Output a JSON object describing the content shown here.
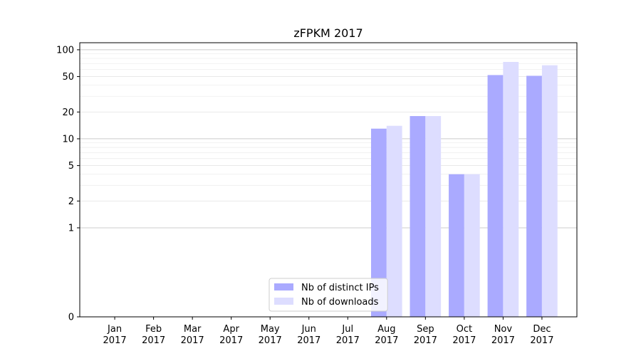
{
  "chart_data": {
    "type": "bar",
    "title": "zFPKM 2017",
    "xlabel": "",
    "ylabel": "",
    "yscale": "symlog",
    "ylim": [
      0,
      120
    ],
    "y_ticks": [
      0,
      1,
      2,
      5,
      10,
      20,
      50,
      100
    ],
    "y_tick_labels": [
      "0",
      "1",
      "2",
      "5",
      "10",
      "20",
      "50",
      "100"
    ],
    "grid": true,
    "legend_position": "lower center",
    "categories": [
      "Jan\n2017",
      "Feb\n2017",
      "Mar\n2017",
      "Apr\n2017",
      "May\n2017",
      "Jun\n2017",
      "Jul\n2017",
      "Aug\n2017",
      "Sep\n2017",
      "Oct\n2017",
      "Nov\n2017",
      "Dec\n2017"
    ],
    "series": [
      {
        "name": "Nb of distinct IPs",
        "color": "#aaaaff",
        "values": [
          0,
          0,
          0,
          0,
          0,
          0,
          0,
          13,
          18,
          4,
          52,
          51
        ]
      },
      {
        "name": "Nb of downloads",
        "color": "#ddddff",
        "values": [
          0,
          0,
          0,
          0,
          0,
          0,
          0,
          14,
          18,
          4,
          73,
          67
        ]
      }
    ]
  }
}
